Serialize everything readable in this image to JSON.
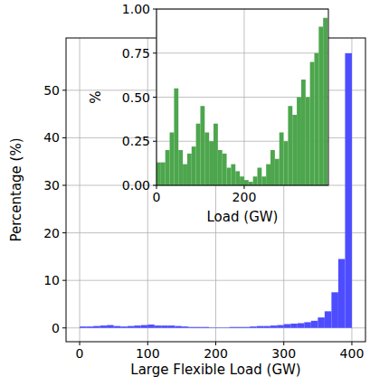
{
  "chart_data": [
    {
      "type": "histogram",
      "x_label": "Large Flexible Load (GW)",
      "y_label": "Percentage (%)",
      "bins": [
        0,
        10,
        20,
        30,
        40,
        50,
        60,
        70,
        80,
        90,
        100,
        110,
        120,
        130,
        140,
        150,
        160,
        170,
        180,
        190,
        200,
        210,
        220,
        230,
        240,
        250,
        260,
        270,
        280,
        290,
        300,
        310,
        320,
        330,
        340,
        350,
        360,
        370,
        380,
        390,
        400
      ],
      "values": [
        0.3,
        0.3,
        0.4,
        0.5,
        0.6,
        0.4,
        0.3,
        0.4,
        0.5,
        0.6,
        0.7,
        0.5,
        0.5,
        0.5,
        0.4,
        0.3,
        0.2,
        0.2,
        0.2,
        0.1,
        0.1,
        0.1,
        0.2,
        0.2,
        0.2,
        0.3,
        0.4,
        0.4,
        0.5,
        0.6,
        0.8,
        0.9,
        1.0,
        1.2,
        1.5,
        2.2,
        3.5,
        7.5,
        14.5,
        57.8
      ],
      "color": "#4d4dff",
      "xlim": [
        -20,
        420
      ],
      "ylim": [
        -2.9,
        61
      ],
      "xticks": [
        0,
        100,
        200,
        300,
        400
      ],
      "yticks": [
        0,
        10,
        20,
        30,
        40,
        50
      ],
      "grid": true
    },
    {
      "type": "histogram",
      "x_label": "Load (GW)",
      "y_label": "%",
      "bins": [
        0,
        10,
        20,
        30,
        40,
        50,
        60,
        70,
        80,
        90,
        100,
        110,
        120,
        130,
        140,
        150,
        160,
        170,
        180,
        190,
        200,
        210,
        220,
        230,
        240,
        250,
        260,
        270,
        280,
        290,
        300,
        310,
        320,
        330,
        340,
        350,
        360,
        370,
        380,
        390
      ],
      "values": [
        0.13,
        0.13,
        0.2,
        0.3,
        0.55,
        0.2,
        0.12,
        0.18,
        0.22,
        0.35,
        0.45,
        0.3,
        0.25,
        0.35,
        0.2,
        0.18,
        0.1,
        0.12,
        0.08,
        0.05,
        0.03,
        0.02,
        0.05,
        0.1,
        0.05,
        0.12,
        0.2,
        0.15,
        0.3,
        0.25,
        0.45,
        0.4,
        0.5,
        0.6,
        0.5,
        0.7,
        0.75,
        0.9,
        0.95
      ],
      "color": "#4da64d",
      "xlim": [
        0,
        392
      ],
      "ylim": [
        0,
        1
      ],
      "xticks": [
        0,
        200
      ],
      "yticks": [
        {
          "value": 0,
          "label": "0.00"
        },
        {
          "value": 0.25,
          "label": "0.25"
        },
        {
          "value": 0.5,
          "label": "0.50"
        },
        {
          "value": 0.75,
          "label": "0.75"
        },
        {
          "value": 1,
          "label": "1.00"
        }
      ],
      "grid": true
    }
  ]
}
